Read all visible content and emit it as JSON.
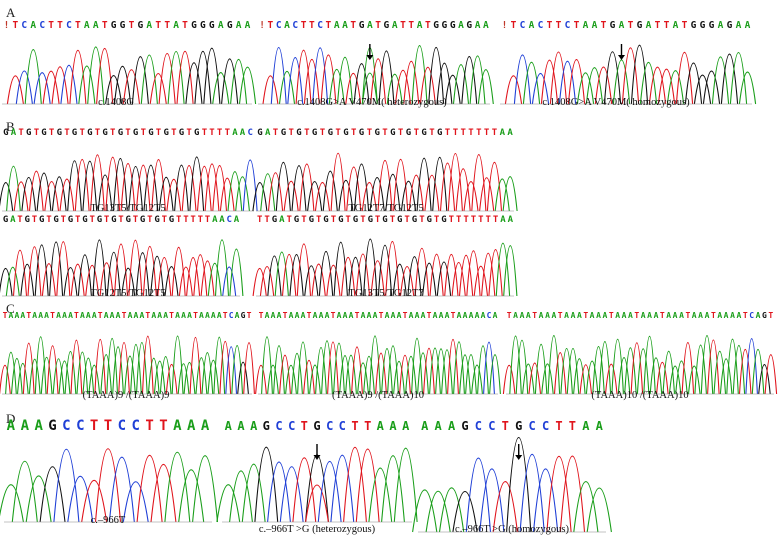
{
  "colors": {
    "A": "#1a9e1a",
    "C": "#1f3fd6",
    "G": "#111111",
    "T": "#e0141c"
  },
  "panels": [
    {
      "label": "A",
      "traces": [
        {
          "seq": "!TCACTTCTAATGGTGATTATGGGAGAA",
          "caption": "c.1408G",
          "arrow": null
        },
        {
          "seq": "!TCACTTCTAATGATGATTATGGGAGAA",
          "caption": "c.1408G>A V470M( heterozygous)",
          "arrow": 13
        },
        {
          "seq": "!TCACTTCTAATGATGATTATGGGAGAA",
          "caption": "c.1408G>A V470M( homozygous)",
          "arrow": 13
        }
      ]
    },
    {
      "label": "B",
      "traces": [
        {
          "seq": "GATGTGTGTGTGTGTGTGTGTGTGTGTTTTAAC",
          "caption": "TG13T5/TG12T5",
          "arrow": null
        },
        {
          "seq": "GATGTGTGTGTGTGTGTGTGTGTGTTTTTTTAA",
          "caption": "TG12T7/TG12T5",
          "arrow": null
        },
        {
          "seq": "GATGTGTGTGTGTGTGTGTGTGTGTTTTTAACA",
          "caption": "TG12T5/TG12T5",
          "arrow": null
        },
        {
          "seq": "TTGATGTGTGTGTGTGTGTGTGTGTGTTTTTTTAA",
          "caption": "TG13T5/TG12T7",
          "arrow": null
        }
      ]
    },
    {
      "label": "C",
      "traces": [
        {
          "seq": "TAAATAAATAAATAAATAAATAAATAAATAAATAAAATCAGT",
          "caption": "(TAAA)9 /(TAAA)9",
          "arrow": null
        },
        {
          "seq": "TAAATAAATAAATAAATAAATAAATAAATAAATAAAAACA",
          "caption": "(TAAA)9 /(TAAA)10",
          "arrow": null
        },
        {
          "seq": "TAAATAAATAAATAAATAAATAAATAAATAAATAAAATCAGT",
          "caption": "(TAAA)10 /(TAAA)10",
          "arrow": null
        }
      ]
    },
    {
      "label": "D",
      "traces": [
        {
          "seq": "AAAGCCTTCCTTAAA",
          "caption": "c.–966T",
          "arrow": null
        },
        {
          "seq": "AAAGCCTGCCTTAAA",
          "caption": "c.–966T >G (heterozygous)",
          "arrow": 7
        },
        {
          "seq": "AAAGCCTGCCTTAA",
          "caption": "c.–966T >G (homozygous)",
          "arrow": 7
        }
      ]
    }
  ]
}
